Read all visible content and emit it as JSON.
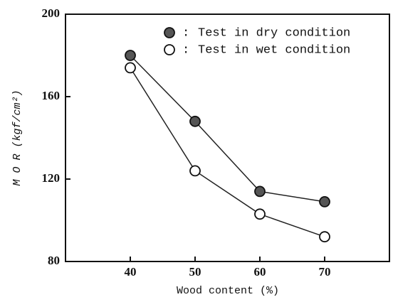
{
  "chart_data": {
    "type": "line",
    "x_label": "Wood content (%)",
    "y_label": "M O R (kgf/cm²)",
    "legend_separator": ":",
    "x": [
      40,
      50,
      60,
      70
    ],
    "series": [
      {
        "name": "Test in dry condition",
        "color": "#555555",
        "values": [
          180,
          148,
          114,
          109
        ]
      },
      {
        "name": "Test in wet condition",
        "color": "#ffffff",
        "values": [
          174,
          124,
          103,
          92
        ]
      }
    ],
    "xlim": [
      30,
      80
    ],
    "xticks": [
      40,
      50,
      60,
      70
    ],
    "ylim": [
      80,
      200
    ],
    "yticks": [
      80,
      120,
      160,
      200
    ],
    "legend": "upper right"
  }
}
